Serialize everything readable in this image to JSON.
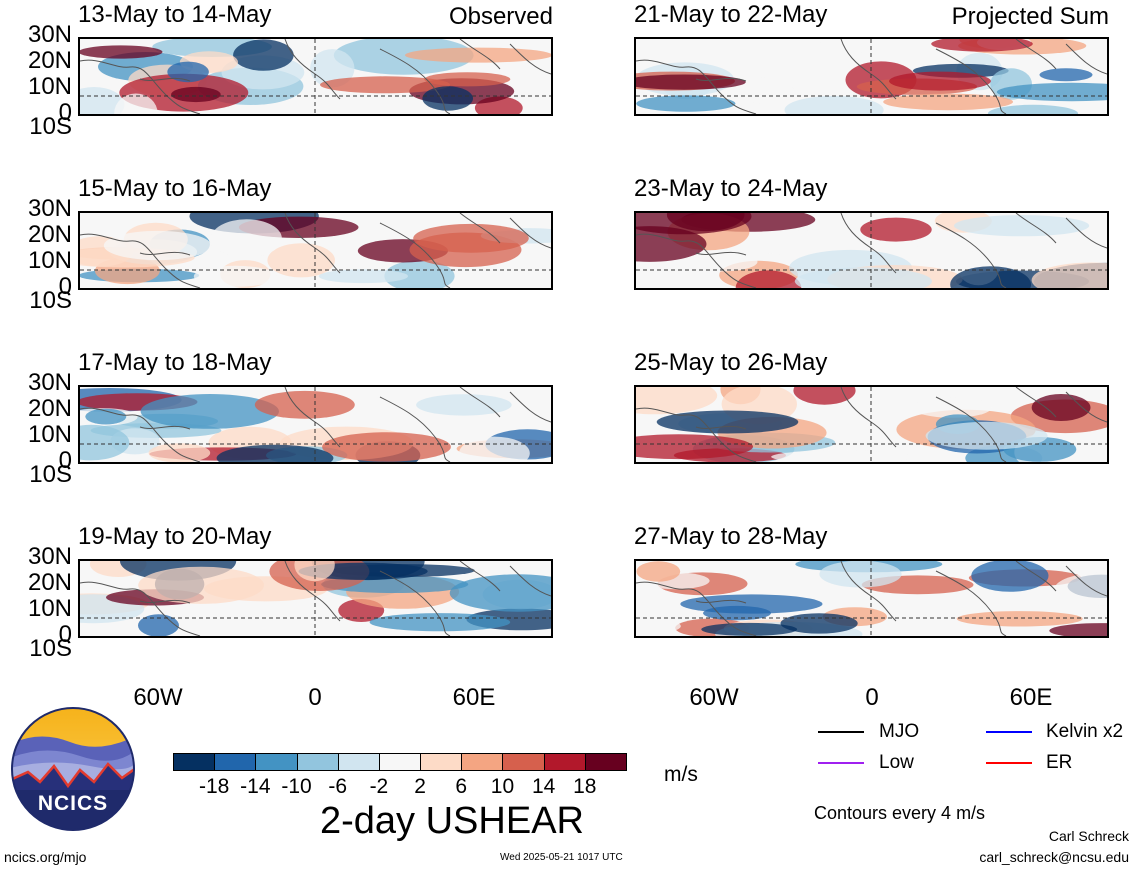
{
  "variable_title": "2-day USHEAR",
  "units": "m/s",
  "contour_note": "Contours every 4 m/s",
  "columns": {
    "left_tag": "Observed",
    "right_tag": "Projected Sum"
  },
  "panels_left": [
    {
      "date_range": "13-May to 14-May"
    },
    {
      "date_range": "15-May to 16-May"
    },
    {
      "date_range": "17-May to 18-May"
    },
    {
      "date_range": "19-May to 20-May"
    }
  ],
  "panels_right": [
    {
      "date_range": "21-May to 22-May"
    },
    {
      "date_range": "23-May to 24-May"
    },
    {
      "date_range": "25-May to 26-May"
    },
    {
      "date_range": "27-May to 28-May"
    }
  ],
  "lat_labels": [
    "30N",
    "20N",
    "10N",
    "0",
    "10S"
  ],
  "lon_labels": [
    "60W",
    "0",
    "60E"
  ],
  "colorbar": {
    "ticks": [
      "-18",
      "-14",
      "-10",
      "-6",
      "-2",
      "2",
      "6",
      "10",
      "14",
      "18"
    ],
    "colors": [
      "#053061",
      "#2166ac",
      "#4393c3",
      "#92c5de",
      "#d1e5f0",
      "#f7f7f7",
      "#fddbc7",
      "#f4a582",
      "#d6604d",
      "#b2182b",
      "#67001f"
    ]
  },
  "legend": [
    {
      "label": "MJO",
      "color": "#000000"
    },
    {
      "label": "Kelvin x2",
      "color": "#0000ff"
    },
    {
      "label": "Low",
      "color": "#a020f0"
    },
    {
      "label": "ER",
      "color": "#ff0000"
    }
  ],
  "logo_text": "NCICS",
  "footer": {
    "site": "ncics.org/mjo",
    "timestamp": "Wed 2025-05-21 1017 UTC",
    "author": "Carl Schreck",
    "email": "carl_schreck@ncsu.edu"
  }
}
